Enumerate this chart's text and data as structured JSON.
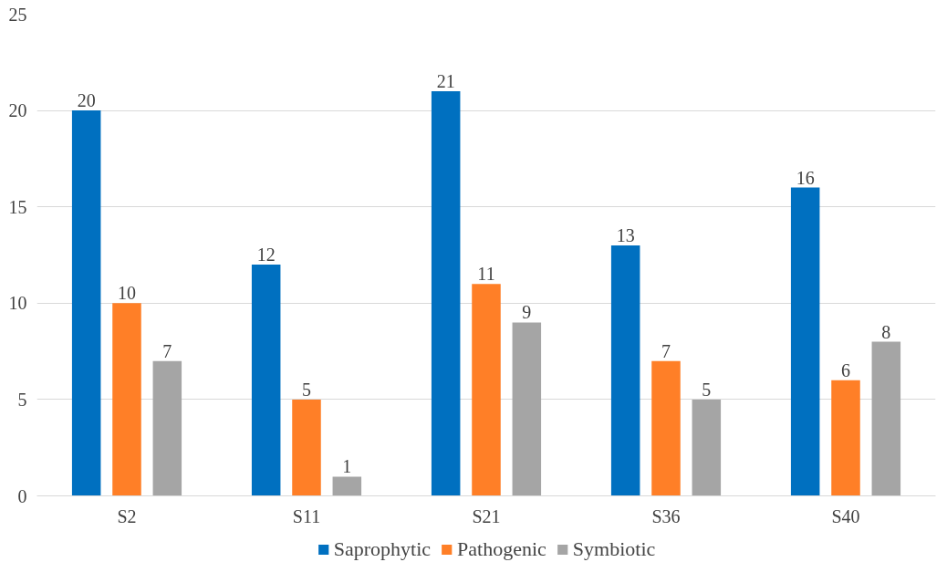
{
  "chart_data": {
    "type": "bar",
    "categories": [
      "S2",
      "S11",
      "S21",
      "S36",
      "S40"
    ],
    "series": [
      {
        "name": "Saprophytic",
        "color": "#0070c0",
        "values": [
          20,
          12,
          21,
          13,
          16
        ]
      },
      {
        "name": "Pathogenic",
        "color": "#ff7f27",
        "values": [
          10,
          5,
          11,
          7,
          6
        ]
      },
      {
        "name": "Symbiotic",
        "color": "#a5a5a5",
        "values": [
          7,
          1,
          9,
          5,
          8
        ]
      }
    ],
    "ylim": [
      0,
      25
    ],
    "yticks": [
      0,
      5,
      10,
      15,
      20,
      25
    ],
    "grid": "y",
    "legend": "bottom",
    "data_labels": true
  }
}
